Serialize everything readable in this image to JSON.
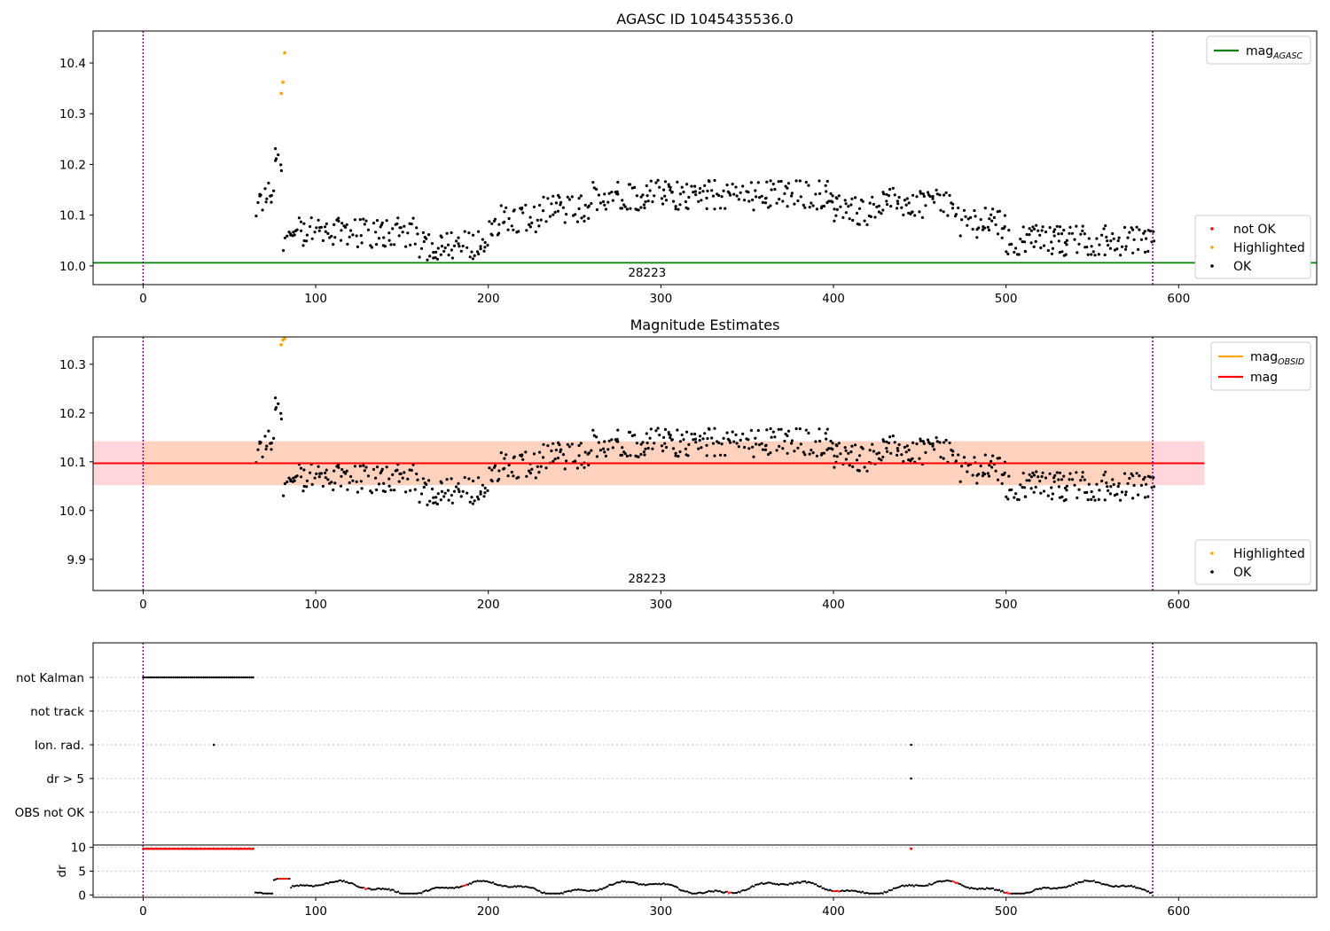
{
  "chart_data": [
    {
      "type": "scatter",
      "title": "AGASC ID 1045435536.0",
      "xlabel": "",
      "ylabel": "",
      "xlim": [
        -29,
        680
      ],
      "ylim": [
        9.963,
        10.463
      ],
      "x_ticks": [
        0,
        100,
        200,
        300,
        400,
        500,
        600
      ],
      "y_ticks": [
        10.0,
        10.1,
        10.2,
        10.3,
        10.4
      ],
      "y_tick_labels": [
        "10.0",
        "10.1",
        "10.2",
        "10.3",
        "10.4"
      ],
      "vlines": [
        0,
        585
      ],
      "obsid_label": "28223",
      "obsid_label_x": 292,
      "hline": {
        "name": "mag_AGASC",
        "y": 10.006,
        "color": "#008000"
      },
      "legend_top": {
        "position": "upper right",
        "entries": [
          {
            "label": "mag",
            "sub": "AGASC",
            "color": "#008000",
            "kind": "line"
          }
        ]
      },
      "legend_bottom": {
        "position": "lower right",
        "entries": [
          {
            "label": "not OK",
            "color": "#ff0000",
            "kind": "dot"
          },
          {
            "label": "Highlighted",
            "color": "#ffa500",
            "kind": "dot"
          },
          {
            "label": "OK",
            "color": "#000000",
            "kind": "dot"
          }
        ]
      },
      "series": [
        {
          "name": "Highlighted",
          "color": "#ffa500",
          "points": [
            [
              80,
              10.34
            ],
            [
              81,
              10.362
            ],
            [
              82,
              10.42
            ]
          ]
        },
        {
          "name": "OK",
          "color": "#000000",
          "description_range": "x 65–585"
        }
      ]
    },
    {
      "type": "scatter",
      "title": "Magnitude Estimates",
      "xlabel": "",
      "ylabel": "",
      "xlim": [
        -29,
        680
      ],
      "ylim": [
        9.836,
        10.356
      ],
      "x_ticks": [
        0,
        100,
        200,
        300,
        400,
        500,
        600
      ],
      "y_ticks": [
        9.9,
        10.0,
        10.1,
        10.2,
        10.3
      ],
      "y_tick_labels": [
        "9.9",
        "10.0",
        "10.1",
        "10.2",
        "10.3"
      ],
      "vlines": [
        0,
        585
      ],
      "obsid_label": "28223",
      "obsid_label_x": 292,
      "mag_line": {
        "y": 10.097,
        "x_end": 615,
        "color": "#ff0000"
      },
      "band_outer": {
        "y0": 10.052,
        "y1": 10.142,
        "color": "#ffd6dc"
      },
      "band_inner": {
        "x0": 0,
        "x1": 585,
        "y0": 10.052,
        "y1": 10.142,
        "color": "#ffd2c0"
      },
      "legend_top": {
        "position": "upper right",
        "entries": [
          {
            "label": "mag",
            "sub": "OBSID",
            "color": "#ffa500",
            "kind": "line"
          },
          {
            "label": "mag",
            "sub": "",
            "color": "#ff0000",
            "kind": "line"
          }
        ]
      },
      "legend_bottom": {
        "position": "lower right",
        "entries": [
          {
            "label": "Highlighted",
            "color": "#ffa500",
            "kind": "dot"
          },
          {
            "label": "OK",
            "color": "#000000",
            "kind": "dot"
          }
        ]
      },
      "series": [
        {
          "name": "Highlighted",
          "color": "#ffa500",
          "points": [
            [
              80,
              10.34
            ],
            [
              81,
              10.35
            ],
            [
              82,
              10.353
            ]
          ]
        },
        {
          "name": "OK",
          "color": "#000000",
          "description_range": "x 65–585"
        }
      ]
    },
    {
      "type": "scatter",
      "title": "",
      "xlim": [
        -29,
        680
      ],
      "categories": [
        "not Kalman",
        "not track",
        "Ion. rad.",
        "dr > 5",
        "OBS not OK"
      ],
      "vlines": [
        0,
        585
      ],
      "flags": {
        "not Kalman": {
          "x_range": [
            0,
            64
          ]
        },
        "not track": {
          "x_range": null
        },
        "Ion. rad.": {
          "points": [
            41,
            445
          ]
        },
        "dr > 5": {
          "points": [
            445
          ]
        },
        "OBS not OK": {
          "x_range": null
        }
      }
    },
    {
      "type": "scatter",
      "title": "",
      "xlabel": "",
      "ylabel": "dr",
      "xlim": [
        -29,
        680
      ],
      "ylim": [
        -0.5,
        10.5
      ],
      "x_ticks": [
        0,
        100,
        200,
        300,
        400,
        500,
        600
      ],
      "y_ticks": [
        0,
        5,
        10
      ],
      "y_tick_labels": [
        "0",
        "5",
        "10"
      ],
      "vlines": [
        0,
        585
      ],
      "series": [
        {
          "name": "dr > 5",
          "color": "#ff0000",
          "x_range": [
            0,
            64
          ],
          "y": 9.7
        },
        {
          "name": "dr track",
          "color": "#000000",
          "description_range": "x 65–585, y 0.5–3"
        }
      ]
    }
  ]
}
